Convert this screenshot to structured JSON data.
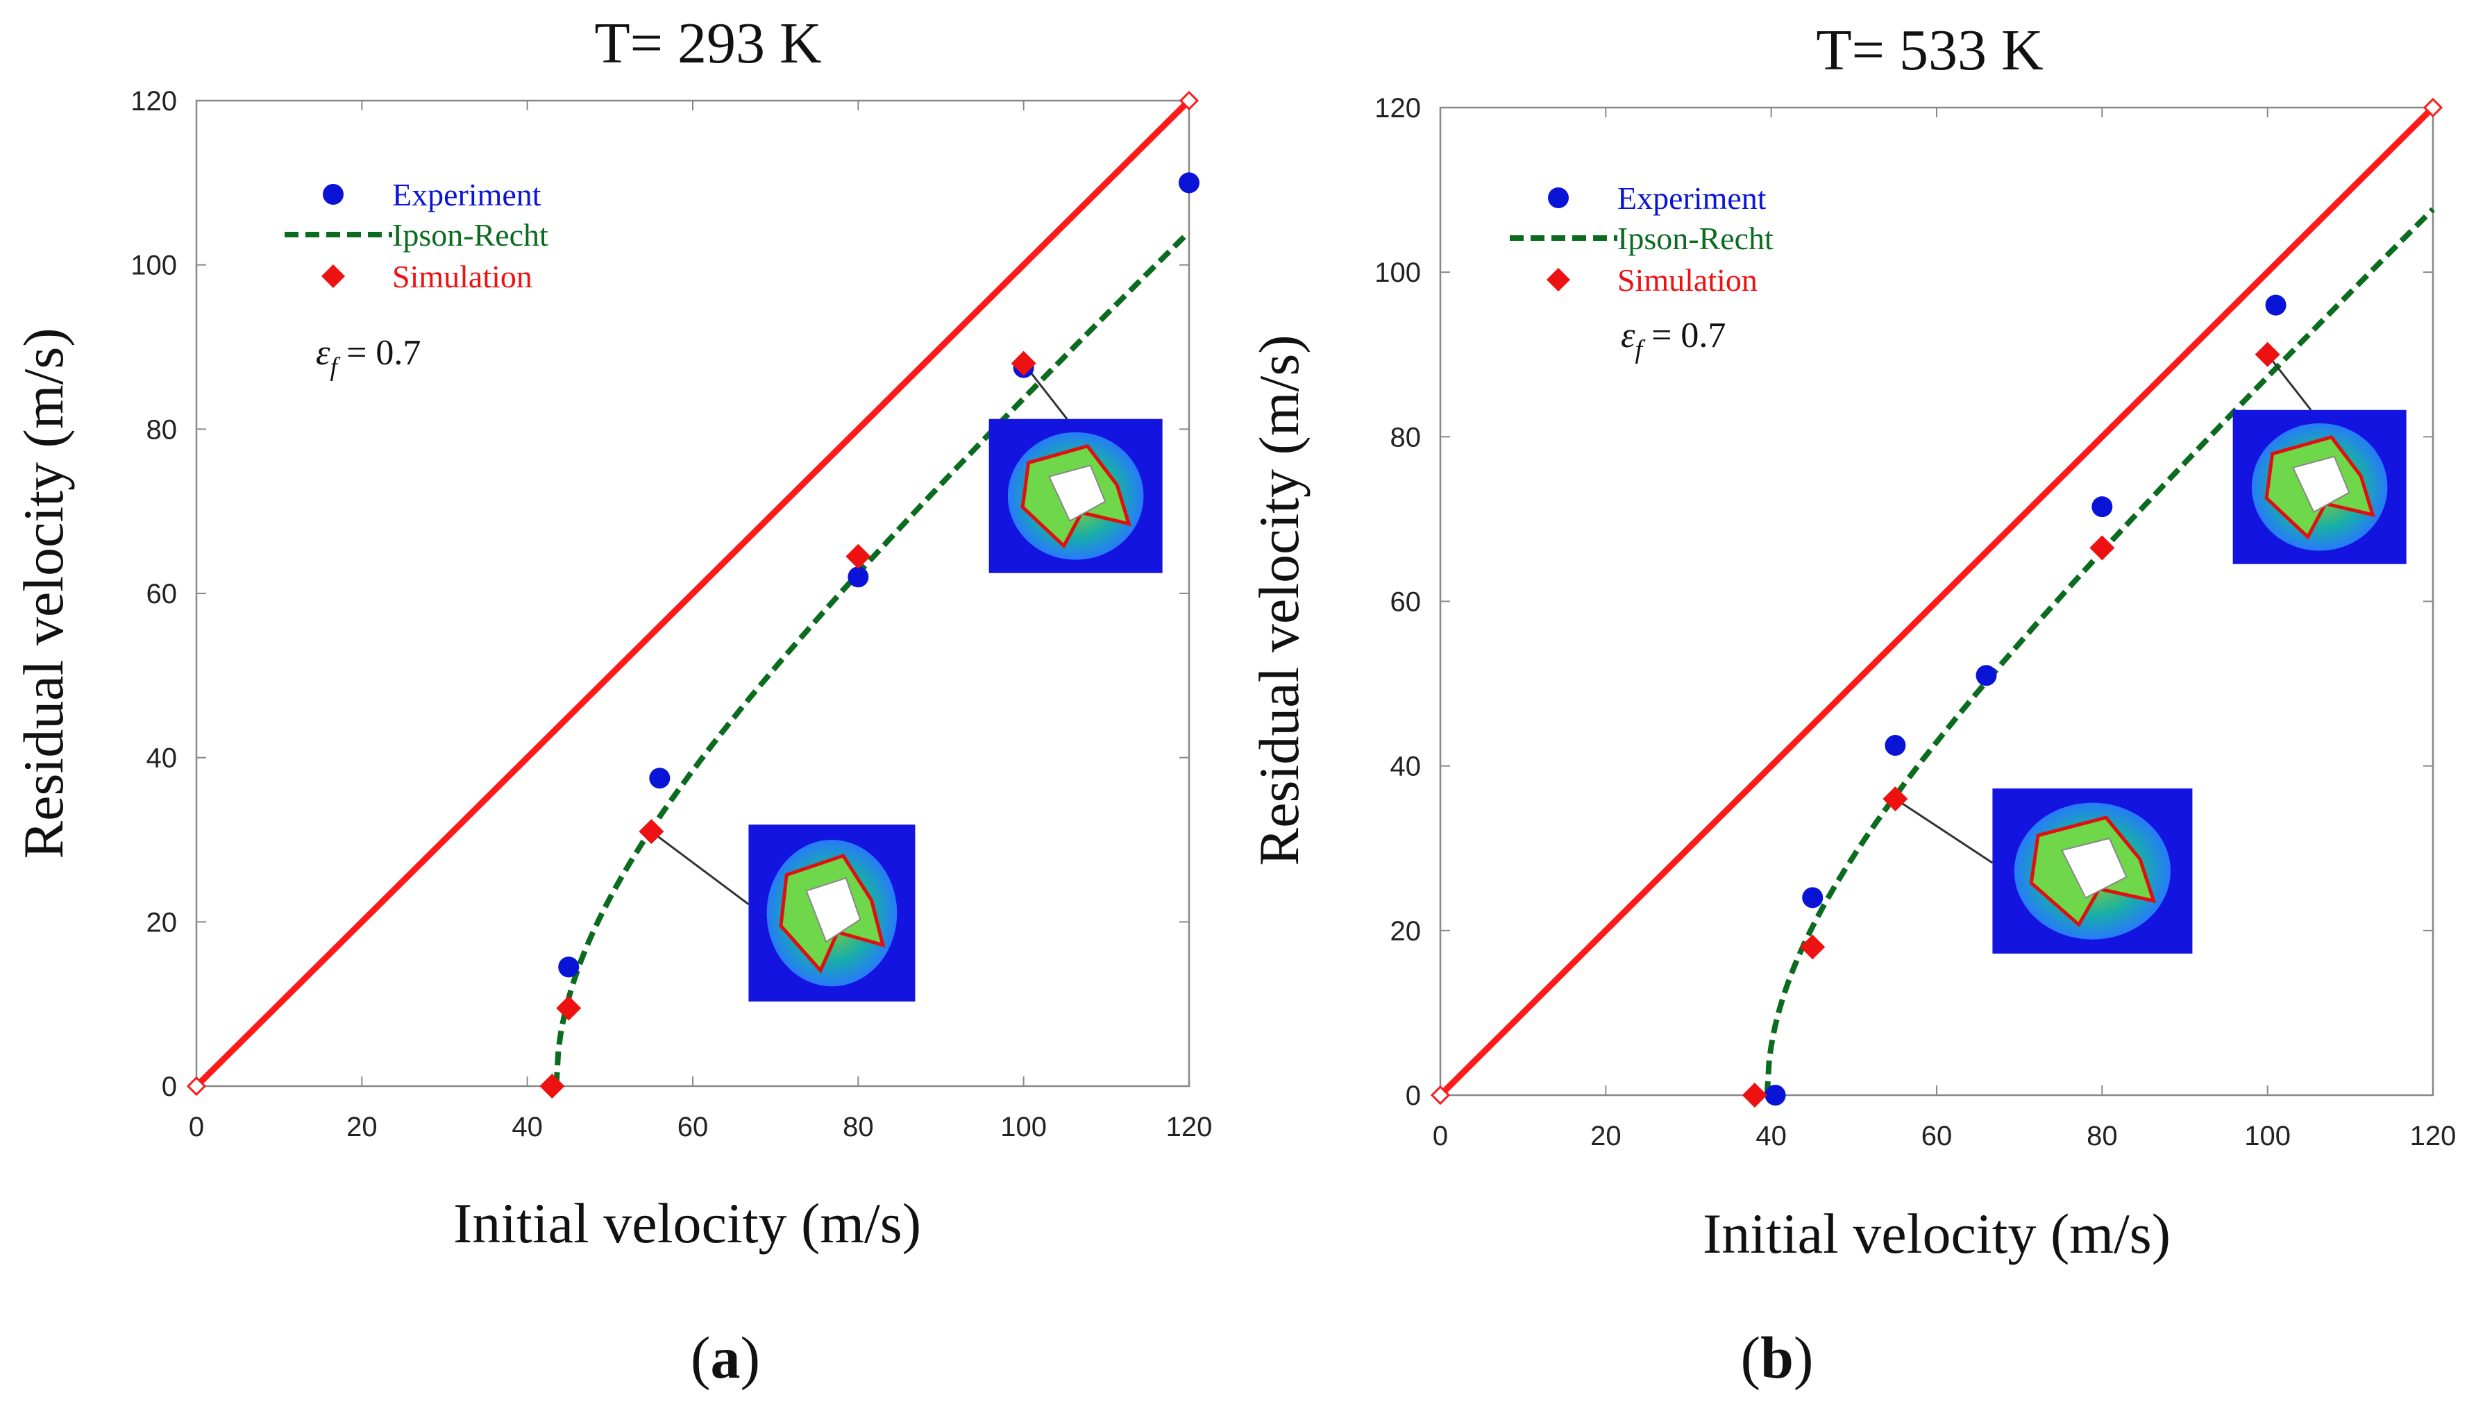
{
  "colors": {
    "ideal_line": "#ff1a1a",
    "ipson_recht": "#0b6b1f",
    "experiment": "#0a14d6",
    "simulation": "#ee1111",
    "inset_bg": "#1414e0"
  },
  "chart_data": [
    {
      "type": "scatter",
      "panel_label": "a",
      "title": "T= 293 K",
      "xlabel": "Initial velocity (m/s)",
      "ylabel": "Residual velocity (m/s)",
      "xlim": [
        0,
        120
      ],
      "ylim": [
        0,
        120
      ],
      "xticks": [
        0,
        20,
        40,
        60,
        80,
        100,
        120
      ],
      "yticks": [
        0,
        20,
        40,
        60,
        80,
        100,
        120
      ],
      "legend": [
        "Experiment",
        "Ipson-Recht",
        "Simulation"
      ],
      "annotation_symbol": "ε",
      "annotation_subscript": "f",
      "annotation_value": " = 0.7",
      "ideal_line": {
        "x": [
          0,
          120
        ],
        "y": [
          0,
          120
        ]
      },
      "ipson_recht": {
        "v_bl": 43.5,
        "a": 0.93,
        "p": 2.0
      },
      "series": [
        {
          "name": "Experiment",
          "marker": "circle",
          "x": [
            45,
            56,
            80,
            100,
            120
          ],
          "y": [
            14.5,
            37.5,
            62,
            87.5,
            110
          ]
        },
        {
          "name": "Simulation",
          "marker": "diamond",
          "x": [
            43,
            45,
            55,
            80,
            100
          ],
          "y": [
            0,
            9.5,
            31,
            64.5,
            88
          ]
        }
      ],
      "insets": [
        {
          "x": 55,
          "y": 31,
          "variant": "lower"
        },
        {
          "x": 100,
          "y": 88,
          "variant": "upper"
        }
      ]
    },
    {
      "type": "scatter",
      "panel_label": "b",
      "title": "T= 533 K",
      "xlabel": "Initial velocity (m/s)",
      "ylabel": "Residual velocity (m/s)",
      "xlim": [
        0,
        120
      ],
      "ylim": [
        0,
        120
      ],
      "xticks": [
        0,
        20,
        40,
        60,
        80,
        100,
        120
      ],
      "yticks": [
        0,
        20,
        40,
        60,
        80,
        100,
        120
      ],
      "legend": [
        "Experiment",
        "Ipson-Recht",
        "Simulation"
      ],
      "annotation_symbol": "ε",
      "annotation_subscript": "f",
      "annotation_value": " = 0.7",
      "ideal_line": {
        "x": [
          0,
          120
        ],
        "y": [
          0,
          120
        ]
      },
      "ipson_recht": {
        "v_bl": 39.5,
        "a": 0.95,
        "p": 2.0
      },
      "series": [
        {
          "name": "Experiment",
          "marker": "circle",
          "x": [
            40.5,
            45,
            55,
            66,
            80,
            101
          ],
          "y": [
            0,
            24,
            42.5,
            51,
            71.5,
            96
          ]
        },
        {
          "name": "Simulation",
          "marker": "diamond",
          "x": [
            38,
            45,
            55,
            80,
            100
          ],
          "y": [
            0,
            18,
            36,
            66.5,
            90
          ]
        }
      ],
      "insets": [
        {
          "x": 55,
          "y": 36,
          "variant": "wide"
        },
        {
          "x": 100,
          "y": 90,
          "variant": "upper"
        }
      ]
    }
  ]
}
